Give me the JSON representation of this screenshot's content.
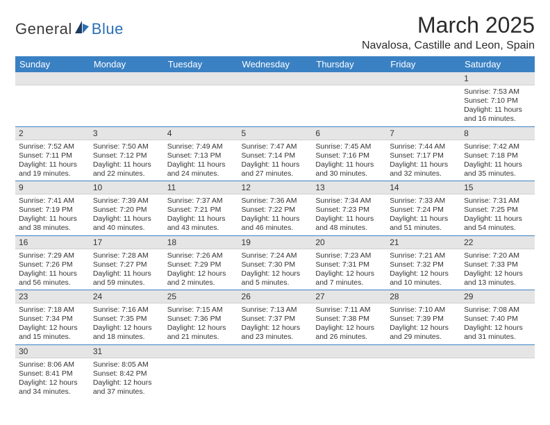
{
  "brand": {
    "part1": "General",
    "part2": "Blue"
  },
  "title": "March 2025",
  "location": "Navalosa, Castille and Leon, Spain",
  "colors": {
    "header_bg": "#3a81c4",
    "header_text": "#ffffff",
    "daynum_bg": "#e5e5e5",
    "border": "#3a81c4",
    "text": "#333333",
    "logo_blue": "#2b6fb5"
  },
  "weekdays": [
    "Sunday",
    "Monday",
    "Tuesday",
    "Wednesday",
    "Thursday",
    "Friday",
    "Saturday"
  ],
  "weeks": [
    [
      {
        "empty": true
      },
      {
        "empty": true
      },
      {
        "empty": true
      },
      {
        "empty": true
      },
      {
        "empty": true
      },
      {
        "empty": true
      },
      {
        "n": "1",
        "sr": "Sunrise: 7:53 AM",
        "ss": "Sunset: 7:10 PM",
        "d1": "Daylight: 11 hours",
        "d2": "and 16 minutes."
      }
    ],
    [
      {
        "n": "2",
        "sr": "Sunrise: 7:52 AM",
        "ss": "Sunset: 7:11 PM",
        "d1": "Daylight: 11 hours",
        "d2": "and 19 minutes."
      },
      {
        "n": "3",
        "sr": "Sunrise: 7:50 AM",
        "ss": "Sunset: 7:12 PM",
        "d1": "Daylight: 11 hours",
        "d2": "and 22 minutes."
      },
      {
        "n": "4",
        "sr": "Sunrise: 7:49 AM",
        "ss": "Sunset: 7:13 PM",
        "d1": "Daylight: 11 hours",
        "d2": "and 24 minutes."
      },
      {
        "n": "5",
        "sr": "Sunrise: 7:47 AM",
        "ss": "Sunset: 7:14 PM",
        "d1": "Daylight: 11 hours",
        "d2": "and 27 minutes."
      },
      {
        "n": "6",
        "sr": "Sunrise: 7:45 AM",
        "ss": "Sunset: 7:16 PM",
        "d1": "Daylight: 11 hours",
        "d2": "and 30 minutes."
      },
      {
        "n": "7",
        "sr": "Sunrise: 7:44 AM",
        "ss": "Sunset: 7:17 PM",
        "d1": "Daylight: 11 hours",
        "d2": "and 32 minutes."
      },
      {
        "n": "8",
        "sr": "Sunrise: 7:42 AM",
        "ss": "Sunset: 7:18 PM",
        "d1": "Daylight: 11 hours",
        "d2": "and 35 minutes."
      }
    ],
    [
      {
        "n": "9",
        "sr": "Sunrise: 7:41 AM",
        "ss": "Sunset: 7:19 PM",
        "d1": "Daylight: 11 hours",
        "d2": "and 38 minutes."
      },
      {
        "n": "10",
        "sr": "Sunrise: 7:39 AM",
        "ss": "Sunset: 7:20 PM",
        "d1": "Daylight: 11 hours",
        "d2": "and 40 minutes."
      },
      {
        "n": "11",
        "sr": "Sunrise: 7:37 AM",
        "ss": "Sunset: 7:21 PM",
        "d1": "Daylight: 11 hours",
        "d2": "and 43 minutes."
      },
      {
        "n": "12",
        "sr": "Sunrise: 7:36 AM",
        "ss": "Sunset: 7:22 PM",
        "d1": "Daylight: 11 hours",
        "d2": "and 46 minutes."
      },
      {
        "n": "13",
        "sr": "Sunrise: 7:34 AM",
        "ss": "Sunset: 7:23 PM",
        "d1": "Daylight: 11 hours",
        "d2": "and 48 minutes."
      },
      {
        "n": "14",
        "sr": "Sunrise: 7:33 AM",
        "ss": "Sunset: 7:24 PM",
        "d1": "Daylight: 11 hours",
        "d2": "and 51 minutes."
      },
      {
        "n": "15",
        "sr": "Sunrise: 7:31 AM",
        "ss": "Sunset: 7:25 PM",
        "d1": "Daylight: 11 hours",
        "d2": "and 54 minutes."
      }
    ],
    [
      {
        "n": "16",
        "sr": "Sunrise: 7:29 AM",
        "ss": "Sunset: 7:26 PM",
        "d1": "Daylight: 11 hours",
        "d2": "and 56 minutes."
      },
      {
        "n": "17",
        "sr": "Sunrise: 7:28 AM",
        "ss": "Sunset: 7:27 PM",
        "d1": "Daylight: 11 hours",
        "d2": "and 59 minutes."
      },
      {
        "n": "18",
        "sr": "Sunrise: 7:26 AM",
        "ss": "Sunset: 7:29 PM",
        "d1": "Daylight: 12 hours",
        "d2": "and 2 minutes."
      },
      {
        "n": "19",
        "sr": "Sunrise: 7:24 AM",
        "ss": "Sunset: 7:30 PM",
        "d1": "Daylight: 12 hours",
        "d2": "and 5 minutes."
      },
      {
        "n": "20",
        "sr": "Sunrise: 7:23 AM",
        "ss": "Sunset: 7:31 PM",
        "d1": "Daylight: 12 hours",
        "d2": "and 7 minutes."
      },
      {
        "n": "21",
        "sr": "Sunrise: 7:21 AM",
        "ss": "Sunset: 7:32 PM",
        "d1": "Daylight: 12 hours",
        "d2": "and 10 minutes."
      },
      {
        "n": "22",
        "sr": "Sunrise: 7:20 AM",
        "ss": "Sunset: 7:33 PM",
        "d1": "Daylight: 12 hours",
        "d2": "and 13 minutes."
      }
    ],
    [
      {
        "n": "23",
        "sr": "Sunrise: 7:18 AM",
        "ss": "Sunset: 7:34 PM",
        "d1": "Daylight: 12 hours",
        "d2": "and 15 minutes."
      },
      {
        "n": "24",
        "sr": "Sunrise: 7:16 AM",
        "ss": "Sunset: 7:35 PM",
        "d1": "Daylight: 12 hours",
        "d2": "and 18 minutes."
      },
      {
        "n": "25",
        "sr": "Sunrise: 7:15 AM",
        "ss": "Sunset: 7:36 PM",
        "d1": "Daylight: 12 hours",
        "d2": "and 21 minutes."
      },
      {
        "n": "26",
        "sr": "Sunrise: 7:13 AM",
        "ss": "Sunset: 7:37 PM",
        "d1": "Daylight: 12 hours",
        "d2": "and 23 minutes."
      },
      {
        "n": "27",
        "sr": "Sunrise: 7:11 AM",
        "ss": "Sunset: 7:38 PM",
        "d1": "Daylight: 12 hours",
        "d2": "and 26 minutes."
      },
      {
        "n": "28",
        "sr": "Sunrise: 7:10 AM",
        "ss": "Sunset: 7:39 PM",
        "d1": "Daylight: 12 hours",
        "d2": "and 29 minutes."
      },
      {
        "n": "29",
        "sr": "Sunrise: 7:08 AM",
        "ss": "Sunset: 7:40 PM",
        "d1": "Daylight: 12 hours",
        "d2": "and 31 minutes."
      }
    ],
    [
      {
        "n": "30",
        "sr": "Sunrise: 8:06 AM",
        "ss": "Sunset: 8:41 PM",
        "d1": "Daylight: 12 hours",
        "d2": "and 34 minutes."
      },
      {
        "n": "31",
        "sr": "Sunrise: 8:05 AM",
        "ss": "Sunset: 8:42 PM",
        "d1": "Daylight: 12 hours",
        "d2": "and 37 minutes."
      },
      {
        "empty": true
      },
      {
        "empty": true
      },
      {
        "empty": true
      },
      {
        "empty": true
      },
      {
        "empty": true
      }
    ]
  ]
}
